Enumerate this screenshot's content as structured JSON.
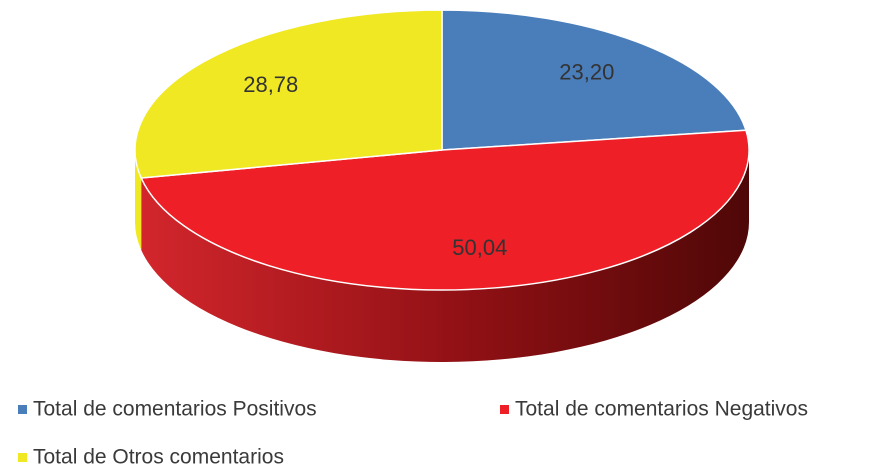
{
  "chart_data": {
    "type": "pie",
    "categories": [
      "Total de comentarios Positivos",
      "Total de comentarios Negativos",
      "Total de Otros comentarios"
    ],
    "values": [
      23.2,
      50.04,
      28.78
    ],
    "value_labels": [
      "23,20",
      "50,04",
      "28,78"
    ],
    "colors": [
      "#4a7ebb",
      "#ee1f26",
      "#efe823"
    ]
  }
}
